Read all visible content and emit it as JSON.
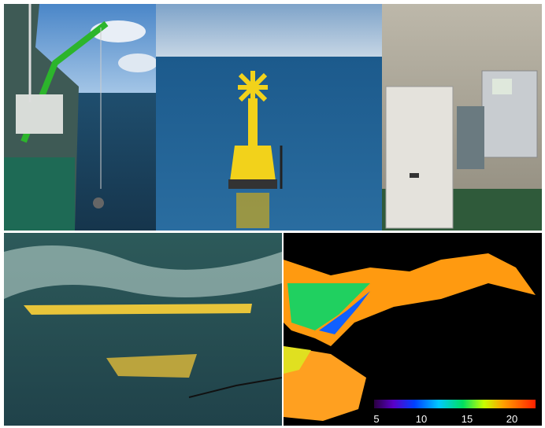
{
  "colorbar": {
    "labels": [
      "5",
      "10",
      "15",
      "20"
    ]
  }
}
